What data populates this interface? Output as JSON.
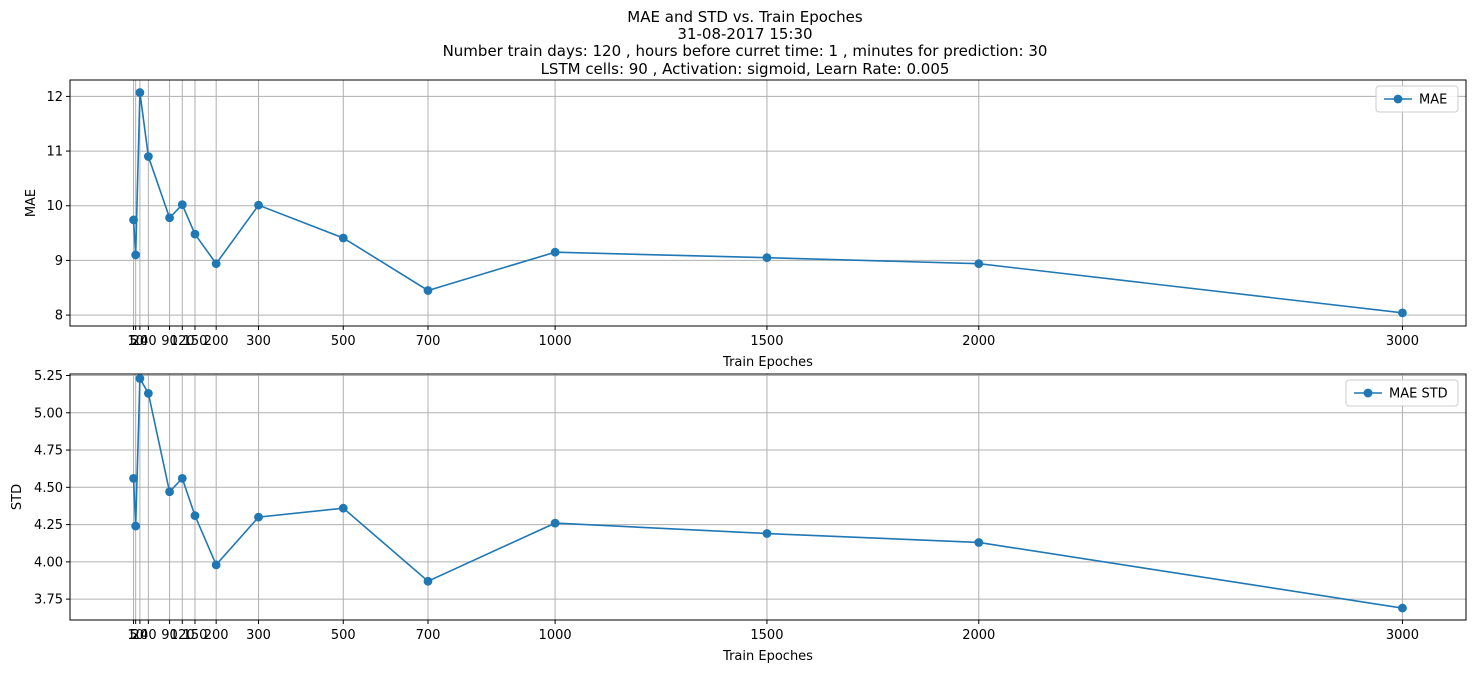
{
  "figure_title": {
    "lines": [
      "MAE and STD vs. Train Epoches",
      "31-08-2017 15:30",
      "Number train days: 120 , hours before curret time: 1 , minutes for prediction: 30",
      "LSTM cells: 90 , Activation: sigmoid, Learn Rate: 0.005"
    ]
  },
  "colors": {
    "series": "#1f77b4",
    "grid": "#b0b0b0",
    "axes": "#000000",
    "legend_border": "#cccccc"
  },
  "chart_data": [
    {
      "type": "line",
      "xlabel": "Train Epoches",
      "ylabel": "MAE",
      "x": [
        5,
        10,
        20,
        40,
        90,
        120,
        150,
        200,
        300,
        500,
        700,
        1000,
        1500,
        2000,
        3000
      ],
      "xticks": [
        5,
        10,
        20,
        40,
        90,
        120,
        150,
        200,
        300,
        500,
        700,
        1000,
        1500,
        2000,
        3000
      ],
      "xtick_labels": [
        "5",
        "10",
        "20",
        "40",
        "90",
        "120",
        "150",
        "200",
        "300",
        "500",
        "700",
        "1000",
        "1500",
        "2000",
        "3000"
      ],
      "xlim": [
        -145,
        3150
      ],
      "ylim": [
        7.8,
        12.3
      ],
      "yticks": [
        8,
        9,
        10,
        11,
        12
      ],
      "ytick_labels": [
        "8",
        "9",
        "10",
        "11",
        "12"
      ],
      "grid": true,
      "legend_position": "top-right",
      "series": [
        {
          "name": "MAE",
          "marker": "circle",
          "values": [
            9.74,
            9.1,
            12.07,
            10.9,
            9.78,
            10.02,
            9.48,
            8.94,
            10.01,
            9.41,
            8.45,
            9.15,
            9.05,
            8.94,
            8.04
          ]
        }
      ]
    },
    {
      "type": "line",
      "xlabel": "Train Epoches",
      "ylabel": "STD",
      "x": [
        5,
        10,
        20,
        40,
        90,
        120,
        150,
        200,
        300,
        500,
        700,
        1000,
        1500,
        2000,
        3000
      ],
      "xticks": [
        5,
        10,
        20,
        40,
        90,
        120,
        150,
        200,
        300,
        500,
        700,
        1000,
        1500,
        2000,
        3000
      ],
      "xtick_labels": [
        "5",
        "10",
        "20",
        "40",
        "90",
        "120",
        "150",
        "200",
        "300",
        "500",
        "700",
        "1000",
        "1500",
        "2000",
        "3000"
      ],
      "xlim": [
        -145,
        3150
      ],
      "ylim": [
        3.61,
        5.26
      ],
      "yticks": [
        3.75,
        4.0,
        4.25,
        4.5,
        4.75,
        5.0,
        5.25
      ],
      "ytick_labels": [
        "3.75",
        "4.00",
        "4.25",
        "4.50",
        "4.75",
        "5.00",
        "5.25"
      ],
      "grid": true,
      "legend_position": "top-right",
      "series": [
        {
          "name": "MAE STD",
          "marker": "circle",
          "values": [
            4.56,
            4.24,
            5.23,
            5.13,
            4.47,
            4.56,
            4.31,
            3.98,
            4.3,
            4.36,
            3.87,
            4.26,
            4.19,
            4.13,
            3.69
          ]
        }
      ]
    }
  ]
}
